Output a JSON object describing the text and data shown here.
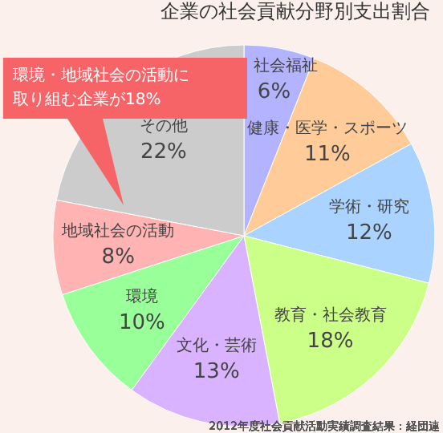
{
  "chart_data": {
    "type": "pie",
    "title": "企業の社会貢献分野別支出割合",
    "categories": [
      "社会福祉",
      "健康・医学・スポーツ",
      "学術・研究",
      "教育・社会教育",
      "文化・芸術",
      "環境",
      "地域社会の活動",
      "その他"
    ],
    "values": [
      6,
      11,
      12,
      18,
      13,
      10,
      8,
      22
    ],
    "value_labels": [
      "6%",
      "11%",
      "12%",
      "18%",
      "13%",
      "10%",
      "8%",
      "22%"
    ],
    "colors": [
      "#b3b3ff",
      "#ffcc99",
      "#aad4ff",
      "#ccff88",
      "#d9b3ff",
      "#99ff99",
      "#ffb3b3",
      "#cccccc"
    ],
    "legend": false,
    "annotations": [
      "環境・地域社会の活動に取り組む企業が18%",
      "2012年度社会貢献活動実績調査結果：経団連"
    ]
  }
}
